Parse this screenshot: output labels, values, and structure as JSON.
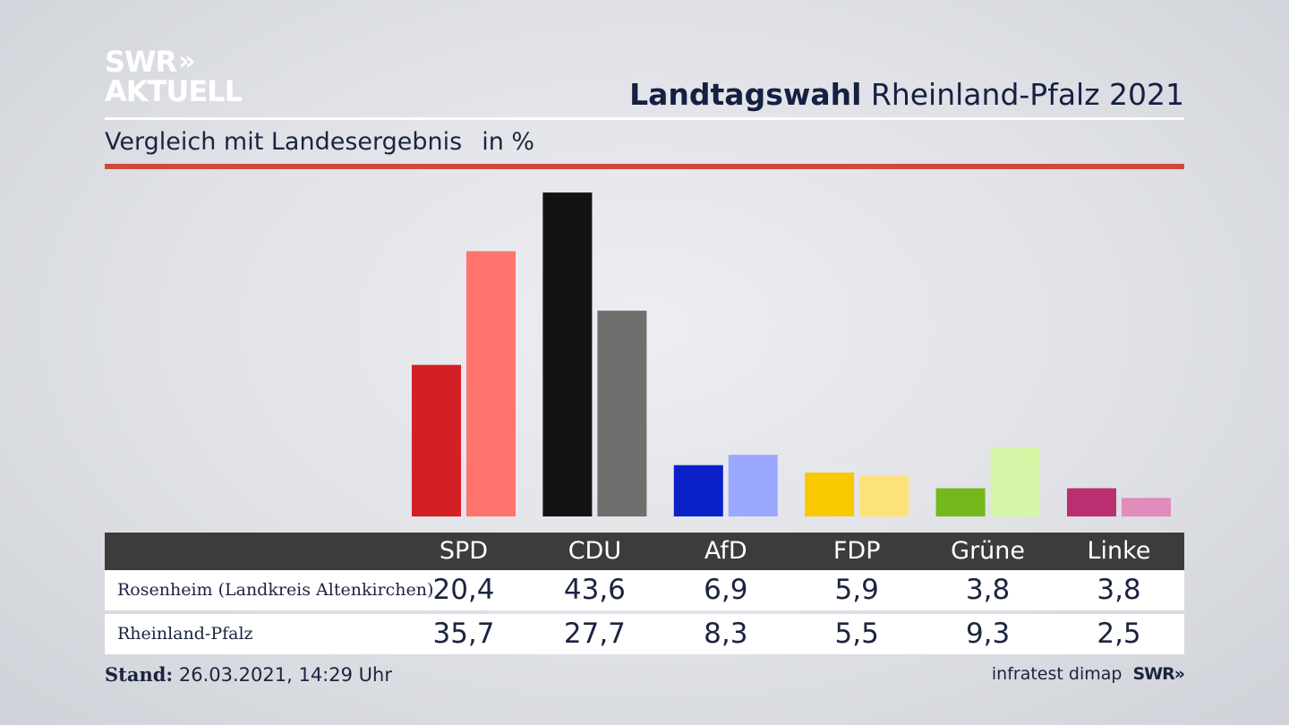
{
  "brand": {
    "line1": "SWR",
    "chevrons": "»",
    "line2": "AKTUELL"
  },
  "header": {
    "title_bold": "Landtagswahl",
    "title_rest": "Rheinland-Pfalz 2021"
  },
  "subtitle": {
    "text": "Vergleich mit Landesergebnis",
    "unit": "in %"
  },
  "colors": {
    "accent_rule": "#cf4a3c",
    "table_header": "#3c3c3c"
  },
  "chart_data": {
    "type": "bar",
    "categories": [
      "SPD",
      "CDU",
      "AfD",
      "FDP",
      "Grüne",
      "Linke"
    ],
    "series": [
      {
        "name": "Rosenheim (Landkreis Altenkirchen)",
        "values": [
          20.4,
          43.6,
          6.9,
          5.9,
          3.8,
          3.8
        ],
        "colors": [
          "#d41f24",
          "#121212",
          "#0a20c8",
          "#f8c800",
          "#74b81c",
          "#bb2f71"
        ]
      },
      {
        "name": "Rheinland-Pfalz",
        "values": [
          35.7,
          27.7,
          8.3,
          5.5,
          9.3,
          2.5
        ],
        "colors": [
          "#ff746c",
          "#716f6e",
          "#9aa9ff",
          "#fde27a",
          "#d4f6a6",
          "#e08cbc"
        ]
      }
    ],
    "value_labels": [
      [
        "20,4",
        "43,6",
        "6,9",
        "5,9",
        "3,8",
        "3,8"
      ],
      [
        "35,7",
        "27,7",
        "8,3",
        "5,5",
        "9,3",
        "2,5"
      ]
    ],
    "ylim": [
      0,
      45
    ]
  },
  "footer": {
    "stand_label": "Stand:",
    "stand_value": "26.03.2021, 14:29 Uhr",
    "source": "infratest dimap",
    "source_brand": "SWR",
    "source_chevrons": "»"
  }
}
